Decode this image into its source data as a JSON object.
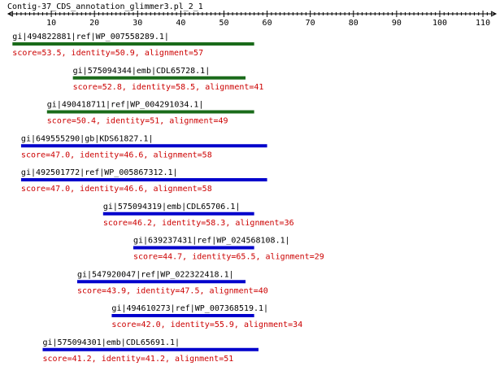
{
  "title": "Contig-37_CDS_annotation_glimmer3.pl_2_1",
  "axis": {
    "min": 0,
    "max": 113,
    "ticks": [
      10,
      20,
      30,
      40,
      50,
      60,
      70,
      80,
      90,
      100,
      110
    ]
  },
  "colors": {
    "green": "#1a6b1a",
    "blue": "#0000cc",
    "stats": "#cc0000",
    "axis": "#000000"
  },
  "hits": [
    {
      "label": "gi|494822881|ref|WP_007558289.1|",
      "stats": "score=53.5, identity=50.9, alignment=57",
      "start": 1,
      "end": 57,
      "color": "green"
    },
    {
      "label": "gi|575094344|emb|CDL65728.1|",
      "stats": "score=52.8, identity=58.5, alignment=41",
      "start": 15,
      "end": 55,
      "color": "green"
    },
    {
      "label": "gi|490418711|ref|WP_004291034.1|",
      "stats": "score=50.4, identity=51, alignment=49",
      "start": 9,
      "end": 57,
      "color": "green"
    },
    {
      "label": "gi|649555290|gb|KDS61827.1|",
      "stats": "score=47.0, identity=46.6, alignment=58",
      "start": 3,
      "end": 60,
      "color": "blue"
    },
    {
      "label": "gi|492501772|ref|WP_005867312.1|",
      "stats": "score=47.0, identity=46.6, alignment=58",
      "start": 3,
      "end": 60,
      "color": "blue"
    },
    {
      "label": "gi|575094319|emb|CDL65706.1|",
      "stats": "score=46.2, identity=58.3, alignment=36",
      "start": 22,
      "end": 57,
      "color": "blue"
    },
    {
      "label": "gi|639237431|ref|WP_024568108.1|",
      "stats": "score=44.7, identity=65.5, alignment=29",
      "start": 29,
      "end": 57,
      "color": "blue"
    },
    {
      "label": "gi|547920047|ref|WP_022322418.1|",
      "stats": "score=43.9, identity=47.5, alignment=40",
      "start": 16,
      "end": 55,
      "color": "blue"
    },
    {
      "label": "gi|494610273|ref|WP_007368519.1|",
      "stats": "score=42.0, identity=55.9, alignment=34",
      "start": 24,
      "end": 57,
      "color": "blue"
    },
    {
      "label": "gi|575094301|emb|CDL65691.1|",
      "stats": "score=41.2, identity=41.2, alignment=51",
      "start": 8,
      "end": 58,
      "color": "blue"
    }
  ]
}
